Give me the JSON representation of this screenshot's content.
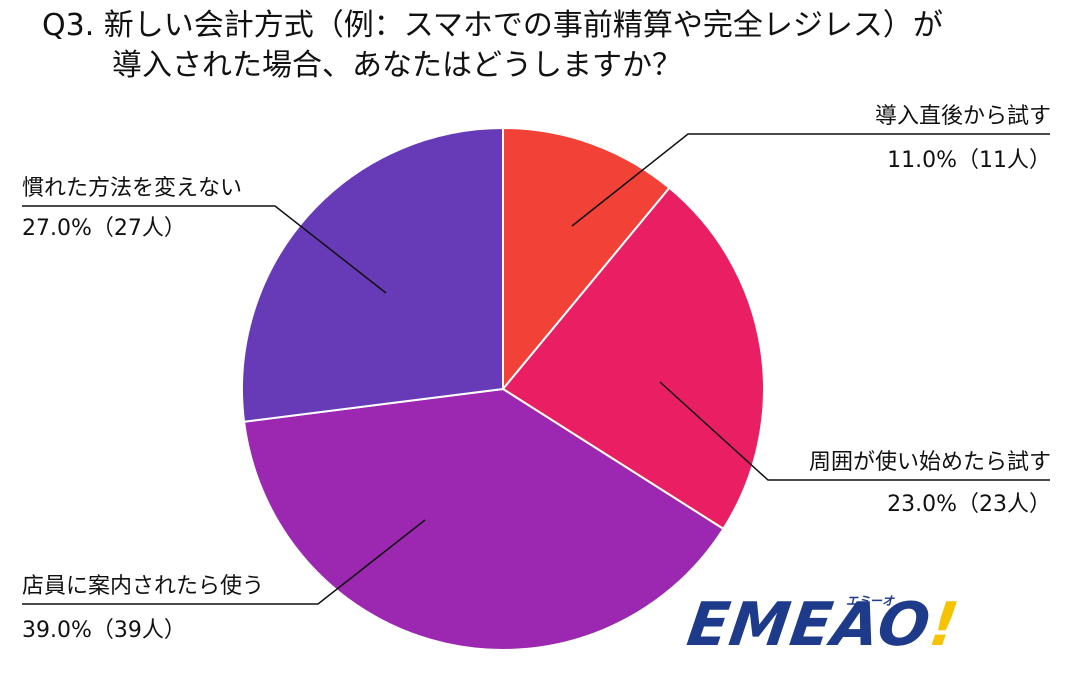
{
  "title_line1": "Q3. 新しい会計方式（例：スマホでの事前精算や完全レジレス）が",
  "title_line2": "導入された場合、あなたはどうしますか？",
  "chart_data": {
    "type": "pie",
    "slices": [
      {
        "label": "導入直後から試す",
        "percent": 11.0,
        "display": "11.0%（11人）",
        "color": "#f24136"
      },
      {
        "label": "周囲が使い始めたら試す",
        "percent": 23.0,
        "display": "23.0%（23人）",
        "color": "#e91e63"
      },
      {
        "label": "店員に案内されたら使う",
        "percent": 39.0,
        "display": "39.0%（39人）",
        "color": "#9c27b0"
      },
      {
        "label": "慣れた方法を変えない",
        "percent": 27.0,
        "display": "27.0%（27人）",
        "color": "#673ab7"
      }
    ]
  },
  "logo": {
    "text": "EMEAO",
    "mark": "!",
    "kana": "エミーオ"
  }
}
